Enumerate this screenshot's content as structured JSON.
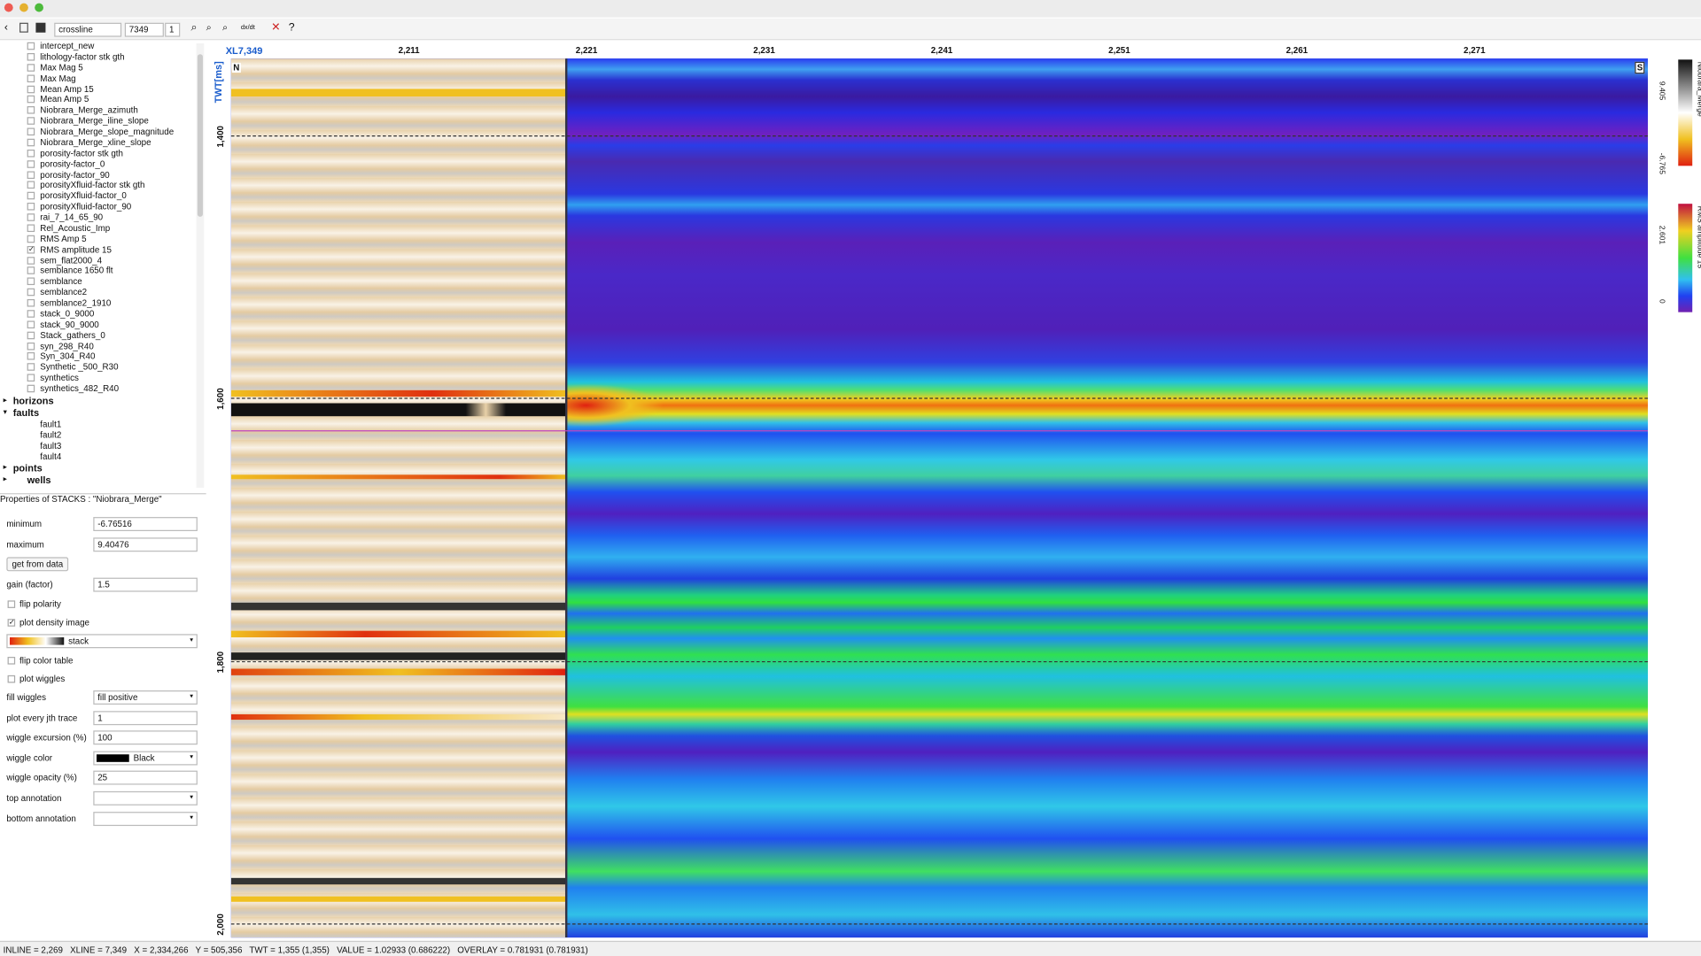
{
  "toolbar": {
    "mode": "crossline",
    "line": "7349",
    "step": "1",
    "tool": "dx/dt",
    "help": "?"
  },
  "tree": {
    "items": [
      {
        "label": "intercept_new"
      },
      {
        "label": "lithology-factor stk gth"
      },
      {
        "label": "Max Mag 5"
      },
      {
        "label": "Max Mag"
      },
      {
        "label": "Mean Amp 15"
      },
      {
        "label": "Mean Amp 5"
      },
      {
        "label": "Niobrara_Merge_azimuth"
      },
      {
        "label": "Niobrara_Merge_iline_slope"
      },
      {
        "label": "Niobrara_Merge_slope_magnitude"
      },
      {
        "label": "Niobrara_Merge_xline_slope"
      },
      {
        "label": "porosity-factor stk gth"
      },
      {
        "label": "porosity-factor_0"
      },
      {
        "label": "porosity-factor_90"
      },
      {
        "label": "porosityXfluid-factor stk gth"
      },
      {
        "label": "porosityXfluid-factor_0"
      },
      {
        "label": "porosityXfluid-factor_90"
      },
      {
        "label": "rai_7_14_65_90"
      },
      {
        "label": "Rel_Acoustic_Imp"
      },
      {
        "label": "RMS Amp 5"
      },
      {
        "label": "RMS amplitude 15",
        "checked": true
      },
      {
        "label": "sem_flat2000_4"
      },
      {
        "label": "semblance 1650 flt"
      },
      {
        "label": "semblance"
      },
      {
        "label": "semblance2"
      },
      {
        "label": "semblance2_1910"
      },
      {
        "label": "stack_0_9000"
      },
      {
        "label": "stack_90_9000"
      },
      {
        "label": "Stack_gathers_0"
      },
      {
        "label": "syn_298_R40"
      },
      {
        "label": "Syn_304_R40"
      },
      {
        "label": "Synthetic _500_R30"
      },
      {
        "label": "synthetics"
      },
      {
        "label": "synthetics_482_R40"
      }
    ],
    "groups": [
      {
        "label": "horizons",
        "children": []
      },
      {
        "label": "faults",
        "children": [
          "fault1",
          "fault2",
          "fault3",
          "fault4"
        ]
      },
      {
        "label": "points",
        "children": []
      },
      {
        "label": "wells",
        "children": []
      }
    ]
  },
  "properties": {
    "title": "Properties of STACKS : \"Niobrara_Merge\"",
    "fields": [
      {
        "label": "minimum",
        "value": "-6.76516"
      },
      {
        "label": "maximum",
        "value": "9.40476"
      },
      {
        "button": "get from data"
      },
      {
        "label": "gain (factor)",
        "value": "1.5"
      },
      {
        "check": "flip polarity"
      },
      {
        "check": "plot density image",
        "checked": true
      },
      {
        "select": "stack"
      },
      {
        "check": "flip color table"
      },
      {
        "check": "plot wiggles"
      },
      {
        "label": "fill wiggles",
        "select": "fill positive"
      },
      {
        "label": "plot every jth trace",
        "value": "1"
      },
      {
        "label": "wiggle excursion (%)",
        "value": "100"
      },
      {
        "label": "wiggle color",
        "select": "Black"
      },
      {
        "label": "wiggle opacity (%)",
        "value": "25"
      },
      {
        "label": "top annotation",
        "select": null
      },
      {
        "label": "bottom annotation",
        "select": null
      }
    ]
  },
  "plot": {
    "section": "XL7,349",
    "xticks": [
      "2,211",
      "2,221",
      "2,231",
      "2,241",
      "2,251",
      "2,261",
      "2,271"
    ],
    "ylabel": "TWT[ms]",
    "yticks": [
      "1,400",
      "1,600",
      "1,800",
      "2,000"
    ],
    "left_end": "N",
    "right_end": "S",
    "colorbars": [
      {
        "name": "Niobrara_Merge",
        "max": "9.405",
        "min": "-6.765"
      },
      {
        "name": "RMS amplitude 15",
        "max": "2.601",
        "min": "0"
      }
    ]
  },
  "status": "INLINE = 2,269   XLINE = 7,349   X = 2,334,266   Y = 505,356   TWT = 1,355 (1,355)   VALUE = 1.02933 (0.686222)   OVERLAY = 0.781931 (0.781931)"
}
